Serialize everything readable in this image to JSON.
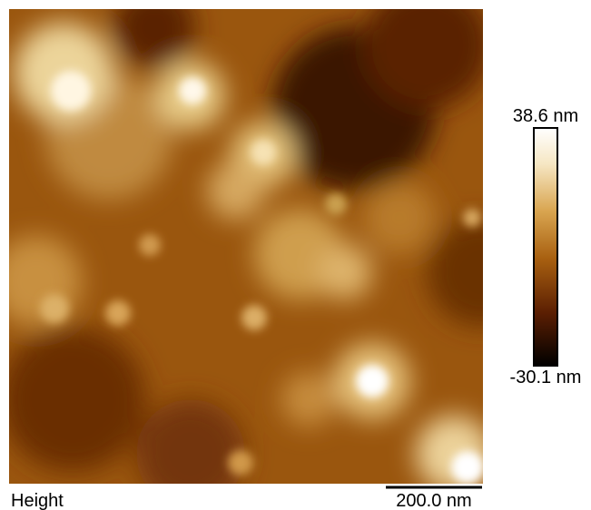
{
  "colorbar": {
    "max": "38.6 nm",
    "min": "-30.1 nm"
  },
  "label": "Height",
  "scale_bar": "200.0 nm"
}
